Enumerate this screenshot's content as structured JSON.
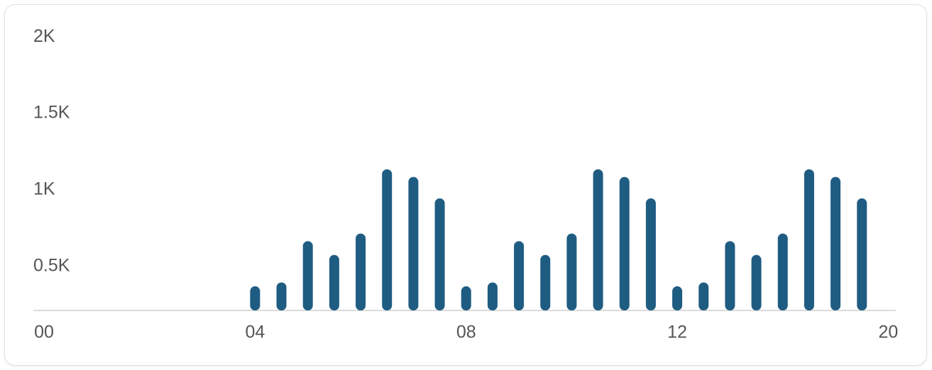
{
  "chart_data": {
    "type": "bar",
    "categories": [
      "00",
      null,
      null,
      null,
      null,
      null,
      null,
      null,
      "04",
      null,
      null,
      null,
      null,
      null,
      null,
      null,
      "08",
      null,
      null,
      null,
      null,
      null,
      null,
      null,
      "12",
      null,
      null,
      null,
      null,
      null,
      null,
      null,
      "20"
    ],
    "values": [
      null,
      null,
      null,
      null,
      null,
      null,
      null,
      null,
      435,
      460,
      730,
      640,
      780,
      1200,
      1150,
      1010,
      435,
      460,
      730,
      640,
      780,
      1200,
      1150,
      1010,
      435,
      460,
      730,
      640,
      780,
      1200,
      1150,
      1010,
      null
    ],
    "color": "#1f5c82",
    "ylim": [
      277,
      2100
    ],
    "yticks": [
      {
        "value": 500,
        "label": "0.5K"
      },
      {
        "value": 1000,
        "label": "1K"
      },
      {
        "value": 1500,
        "label": "1.5K"
      },
      {
        "value": 2000,
        "label": "2K"
      }
    ],
    "grid": false
  }
}
